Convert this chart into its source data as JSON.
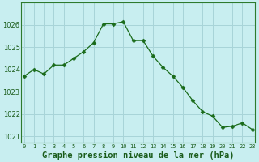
{
  "x": [
    0,
    1,
    2,
    3,
    4,
    5,
    6,
    7,
    8,
    9,
    10,
    11,
    12,
    13,
    14,
    15,
    16,
    17,
    18,
    19,
    20,
    21,
    22,
    23
  ],
  "y": [
    1023.7,
    1024.0,
    1023.8,
    1024.2,
    1024.2,
    1024.5,
    1024.8,
    1025.2,
    1026.05,
    1026.05,
    1026.15,
    1025.3,
    1025.3,
    1024.6,
    1024.1,
    1023.7,
    1023.2,
    1022.6,
    1022.1,
    1021.9,
    1021.4,
    1021.45,
    1021.6,
    1021.3
  ],
  "line_color": "#1a6b1a",
  "marker": "D",
  "marker_size": 2.5,
  "bg_color": "#c8eef0",
  "grid_color": "#a8d4d8",
  "xlabel": "Graphe pression niveau de la mer (hPa)",
  "xlabel_fontsize": 7.5,
  "ylabel_ticks": [
    1021,
    1022,
    1023,
    1024,
    1025,
    1026
  ],
  "xticks": [
    0,
    1,
    2,
    3,
    4,
    5,
    6,
    7,
    8,
    9,
    10,
    11,
    12,
    13,
    14,
    15,
    16,
    17,
    18,
    19,
    20,
    21,
    22,
    23
  ],
  "ylim": [
    1020.7,
    1027.0
  ],
  "xlim": [
    -0.3,
    23.3
  ],
  "border_color": "#2d7a2d",
  "text_color": "#1a5c1a"
}
